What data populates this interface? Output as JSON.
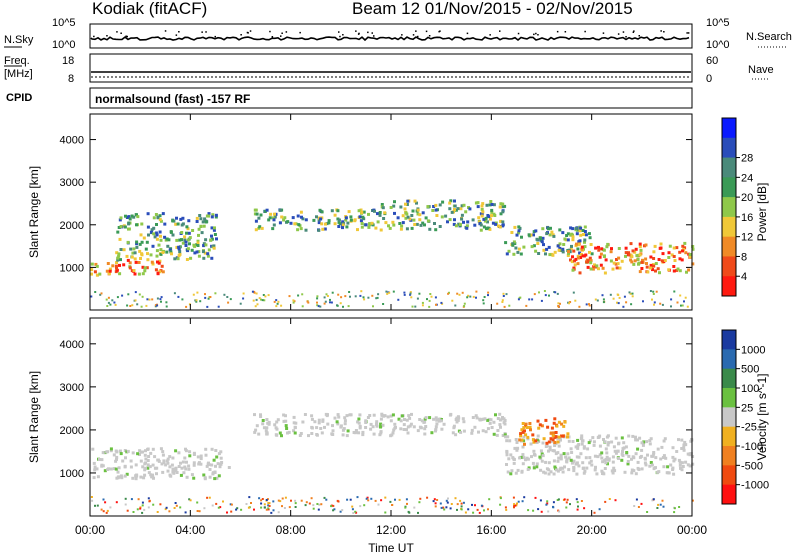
{
  "header": {
    "station": "Kodiak (fitACF)",
    "beam_and_dates": "Beam 12  01/Nov/2015 - 02/Nov/2015"
  },
  "strips": {
    "nsky": {
      "left_label": "N.Sky",
      "right_label": "N.Search",
      "left_ticks": [
        "10^5",
        "10^0"
      ],
      "right_ticks": [
        "10^5",
        "10^0"
      ]
    },
    "freq": {
      "left_label_line1": "Freq.",
      "left_label_line2": "[MHz]",
      "right_label": "Nave",
      "left_ticks": [
        "18",
        "8"
      ],
      "right_ticks": [
        "60",
        "0"
      ]
    },
    "cpid": {
      "label": "CPID",
      "text": "normalsound (fast) -157 RF"
    }
  },
  "time_axis": {
    "ticks": [
      "00:00",
      "04:00",
      "08:00",
      "12:00",
      "16:00",
      "20:00",
      "00:00"
    ],
    "label": "Time UT"
  },
  "chart_data": [
    {
      "type": "heatmap",
      "panel": "power",
      "ylabel": "Slant Range [km]",
      "y_ticks": [
        1000,
        2000,
        3000,
        4000
      ],
      "ylim": [
        0,
        4600
      ],
      "xlim_hours": [
        0,
        24
      ],
      "colorbar": {
        "label": "Power [dB]",
        "ticks": [
          "4",
          "8",
          "12",
          "16",
          "20",
          "24",
          "28"
        ],
        "colors": [
          "#0a1aff",
          "#2a4dba",
          "#4a8a7a",
          "#3a9a56",
          "#8fc84a",
          "#f0c838",
          "#f08a26",
          "#f04a1a",
          "#ff1a10"
        ]
      },
      "echo_regions": [
        {
          "t": [
            0.0,
            3.0
          ],
          "range_km": [
            850,
            1200
          ],
          "level": "high"
        },
        {
          "t": [
            1.0,
            5.0
          ],
          "range_km": [
            1200,
            2300
          ],
          "level": "medium"
        },
        {
          "t": [
            6.5,
            11.5
          ],
          "range_km": [
            1900,
            2400
          ],
          "level": "medium"
        },
        {
          "t": [
            11.5,
            16.5
          ],
          "range_km": [
            1900,
            2600
          ],
          "level": "medium"
        },
        {
          "t": [
            16.5,
            20.0
          ],
          "range_km": [
            1300,
            2000
          ],
          "level": "medium"
        },
        {
          "t": [
            19.0,
            24.0
          ],
          "range_km": [
            900,
            1600
          ],
          "level": "high"
        }
      ]
    },
    {
      "type": "heatmap",
      "panel": "velocity",
      "ylabel": "Slant Range [km]",
      "y_ticks": [
        1000,
        2000,
        3000,
        4000
      ],
      "ylim": [
        0,
        4600
      ],
      "xlim_hours": [
        0,
        24
      ],
      "colorbar": {
        "label": "Velocity [m s^-1]",
        "ticks": [
          "1000",
          "500",
          "100",
          "25",
          "-25",
          "-100",
          "-500",
          "-1000"
        ],
        "colors": [
          "#1a3aa0",
          "#2a6ab0",
          "#3a8a4a",
          "#6ac040",
          "#c8c8c8",
          "#f0b020",
          "#f08020",
          "#f04a10",
          "#ff1010"
        ]
      },
      "echo_regions": [
        {
          "t": [
            0.0,
            5.5
          ],
          "range_km": [
            900,
            1600
          ],
          "level": "ground"
        },
        {
          "t": [
            6.5,
            16.5
          ],
          "range_km": [
            1900,
            2400
          ],
          "level": "ground"
        },
        {
          "t": [
            16.5,
            24.0
          ],
          "range_km": [
            1000,
            1900
          ],
          "level": "ground"
        },
        {
          "t": [
            17.0,
            19.0
          ],
          "range_km": [
            1700,
            2300
          ],
          "level": "negative"
        }
      ]
    }
  ]
}
